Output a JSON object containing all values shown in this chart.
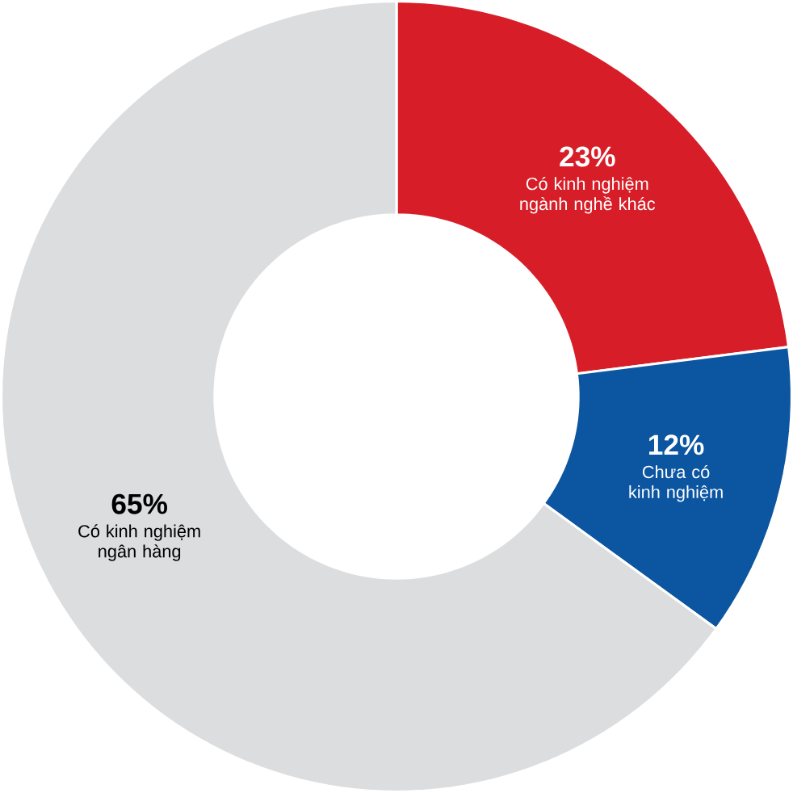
{
  "chart_data": {
    "type": "donut",
    "categories": [
      "Có kinh nghiệm ngành nghề khác",
      "Chưa có kinh nghiệm",
      "Có kinh nghiệm ngân hàng"
    ],
    "values": [
      23,
      12,
      65
    ],
    "value_labels": [
      "23%",
      "12%",
      "65%"
    ],
    "colors": [
      "#d71e28",
      "#0b55a1",
      "#dcdddf"
    ]
  }
}
